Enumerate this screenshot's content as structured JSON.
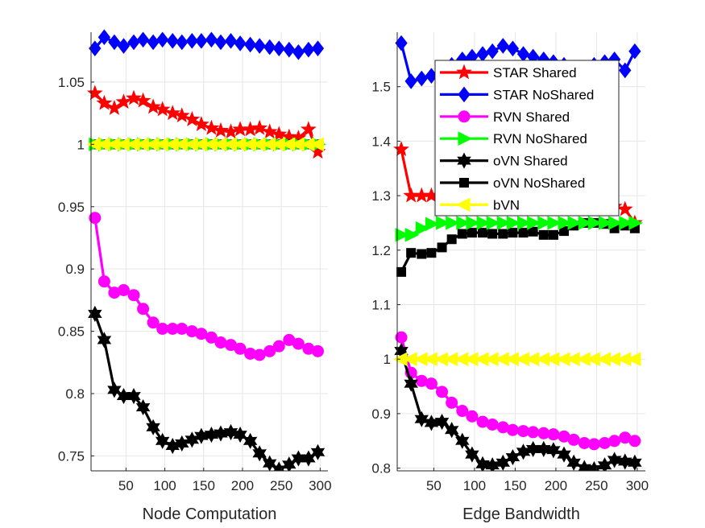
{
  "colors": {
    "STAR Shared": "#ff0000",
    "STAR NoShared": "#0000ff",
    "RVN Shared": "#ff00ff",
    "RVN NoShared": "#00ff00",
    "oVN Shared": "#000000",
    "oVN NoShared": "#000000",
    "bVN": "#ffff00",
    "grid": "#e6e6e6",
    "axis": "#262626"
  },
  "legend": {
    "placement": "top-right of right panel",
    "entries": [
      {
        "name": "STAR Shared",
        "marker": "star"
      },
      {
        "name": "STAR NoShared",
        "marker": "diamond"
      },
      {
        "name": "RVN Shared",
        "marker": "circle"
      },
      {
        "name": "RVN NoShared",
        "marker": "triangle-right"
      },
      {
        "name": "oVN Shared",
        "marker": "hexagram"
      },
      {
        "name": "oVN NoShared",
        "marker": "square"
      },
      {
        "name": "bVN",
        "marker": "triangle-left"
      }
    ]
  },
  "chart_data": [
    {
      "type": "line",
      "xlabel": "Node Computation",
      "ylabel": "",
      "xlim": [
        5,
        310
      ],
      "ylim": [
        0.738,
        1.09
      ],
      "xticks": [
        50,
        100,
        150,
        200,
        250,
        300
      ],
      "yticks": [
        0.75,
        0.8,
        0.85,
        0.9,
        0.95,
        1,
        1.05
      ],
      "ytick_labels": [
        "0.75",
        "0.8",
        "0.85",
        "0.9",
        "0.95",
        "1",
        "1.05"
      ],
      "grid": true,
      "x": [
        10,
        22,
        35,
        47,
        60,
        72,
        85,
        97,
        110,
        122,
        135,
        147,
        160,
        172,
        185,
        197,
        210,
        222,
        235,
        247,
        260,
        272,
        285,
        297
      ],
      "series": [
        {
          "name": "STAR Shared",
          "values": [
            1.041,
            1.033,
            1.029,
            1.034,
            1.037,
            1.035,
            1.03,
            1.028,
            1.025,
            1.023,
            1.02,
            1.016,
            1.013,
            1.011,
            1.01,
            1.012,
            1.012,
            1.013,
            1.01,
            1.008,
            1.006,
            1.005,
            1.012,
            0.994
          ]
        },
        {
          "name": "STAR NoShared",
          "values": [
            1.077,
            1.086,
            1.082,
            1.079,
            1.082,
            1.084,
            1.082,
            1.084,
            1.083,
            1.082,
            1.083,
            1.083,
            1.084,
            1.082,
            1.083,
            1.081,
            1.08,
            1.079,
            1.078,
            1.077,
            1.076,
            1.074,
            1.076,
            1.077
          ]
        },
        {
          "name": "RVN Shared",
          "values": [
            0.941,
            0.89,
            0.881,
            0.883,
            0.879,
            0.868,
            0.857,
            0.852,
            0.852,
            0.852,
            0.85,
            0.848,
            0.845,
            0.841,
            0.839,
            0.836,
            0.832,
            0.831,
            0.834,
            0.838,
            0.843,
            0.84,
            0.836,
            0.834
          ]
        },
        {
          "name": "RVN NoShared",
          "values": [
            1.0,
            1.0,
            1.0,
            1.0,
            1.0,
            1.0,
            1.0,
            1.0,
            1.0,
            1.0,
            1.0,
            1.0,
            1.0,
            1.0,
            1.0,
            1.0,
            1.0,
            1.0,
            1.0,
            1.0,
            1.0,
            1.0,
            1.0,
            1.0
          ]
        },
        {
          "name": "oVN Shared",
          "values": [
            0.864,
            0.843,
            0.803,
            0.798,
            0.798,
            0.789,
            0.773,
            0.762,
            0.758,
            0.76,
            0.763,
            0.766,
            0.767,
            0.768,
            0.769,
            0.767,
            0.762,
            0.752,
            0.744,
            0.739,
            0.743,
            0.748,
            0.748,
            0.753
          ]
        },
        {
          "name": "oVN NoShared",
          "values": [
            1.0,
            1.0,
            1.0,
            1.0,
            1.0,
            1.0,
            1.0,
            1.0,
            1.0,
            1.0,
            1.0,
            1.0,
            1.0,
            1.0,
            1.0,
            1.0,
            1.0,
            1.0,
            1.0,
            1.0,
            1.0,
            1.0,
            1.0,
            1.0
          ]
        },
        {
          "name": "bVN",
          "values": [
            1.0,
            1.0,
            1.0,
            1.0,
            1.0,
            1.0,
            1.0,
            1.0,
            1.0,
            1.0,
            1.0,
            1.0,
            1.0,
            1.0,
            1.0,
            1.0,
            1.0,
            1.0,
            1.0,
            1.0,
            1.0,
            1.0,
            1.0,
            1.0
          ]
        }
      ]
    },
    {
      "type": "line",
      "xlabel": "Edge Bandwidth",
      "ylabel": "",
      "xlim": [
        5,
        310
      ],
      "ylim": [
        0.795,
        1.6
      ],
      "xticks": [
        50,
        100,
        150,
        200,
        250,
        300
      ],
      "yticks": [
        0.8,
        0.9,
        1,
        1.1,
        1.2,
        1.3,
        1.4,
        1.5
      ],
      "ytick_labels": [
        "0.8",
        "0.9",
        "1",
        "1.1",
        "1.2",
        "1.3",
        "1.4",
        "1.5"
      ],
      "grid": true,
      "x": [
        10,
        22,
        35,
        47,
        60,
        72,
        85,
        97,
        110,
        122,
        135,
        147,
        160,
        172,
        185,
        197,
        210,
        222,
        235,
        247,
        260,
        272,
        285,
        297
      ],
      "series": [
        {
          "name": "STAR Shared",
          "values": [
            1.385,
            1.3,
            1.3,
            1.3,
            1.29,
            1.285,
            1.28,
            1.28,
            1.28,
            1.28,
            1.28,
            1.28,
            1.28,
            1.28,
            1.28,
            1.28,
            1.28,
            1.28,
            1.28,
            1.28,
            1.28,
            1.28,
            1.275,
            1.25
          ]
        },
        {
          "name": "STAR NoShared",
          "values": [
            1.58,
            1.51,
            1.515,
            1.52,
            1.53,
            1.54,
            1.55,
            1.555,
            1.56,
            1.565,
            1.575,
            1.57,
            1.56,
            1.555,
            1.55,
            1.545,
            1.54,
            1.535,
            1.535,
            1.54,
            1.545,
            1.55,
            1.53,
            1.565
          ]
        },
        {
          "name": "RVN Shared",
          "values": [
            1.04,
            0.975,
            0.96,
            0.955,
            0.94,
            0.92,
            0.905,
            0.895,
            0.885,
            0.88,
            0.875,
            0.87,
            0.868,
            0.866,
            0.864,
            0.862,
            0.858,
            0.852,
            0.846,
            0.844,
            0.846,
            0.85,
            0.856,
            0.85
          ]
        },
        {
          "name": "RVN NoShared",
          "values": [
            1.228,
            1.228,
            1.24,
            1.248,
            1.25,
            1.25,
            1.25,
            1.25,
            1.25,
            1.25,
            1.25,
            1.25,
            1.25,
            1.25,
            1.25,
            1.25,
            1.25,
            1.25,
            1.25,
            1.25,
            1.25,
            1.25,
            1.25,
            1.25
          ]
        },
        {
          "name": "oVN Shared",
          "values": [
            1.015,
            0.955,
            0.89,
            0.883,
            0.885,
            0.87,
            0.85,
            0.825,
            0.807,
            0.805,
            0.81,
            0.82,
            0.83,
            0.835,
            0.835,
            0.833,
            0.825,
            0.81,
            0.8,
            0.798,
            0.805,
            0.815,
            0.812,
            0.81
          ]
        },
        {
          "name": "oVN NoShared",
          "values": [
            1.16,
            1.195,
            1.193,
            1.195,
            1.205,
            1.22,
            1.23,
            1.232,
            1.232,
            1.23,
            1.23,
            1.232,
            1.232,
            1.234,
            1.228,
            1.228,
            1.235,
            1.245,
            1.25,
            1.25,
            1.248,
            1.24,
            1.245,
            1.24
          ]
        },
        {
          "name": "bVN",
          "values": [
            1.0,
            1.0,
            1.0,
            1.0,
            1.0,
            1.0,
            1.0,
            1.0,
            1.0,
            1.0,
            1.0,
            1.0,
            1.0,
            1.0,
            1.0,
            1.0,
            1.0,
            1.0,
            1.0,
            1.0,
            1.0,
            1.0,
            1.0,
            1.0
          ]
        }
      ]
    }
  ]
}
